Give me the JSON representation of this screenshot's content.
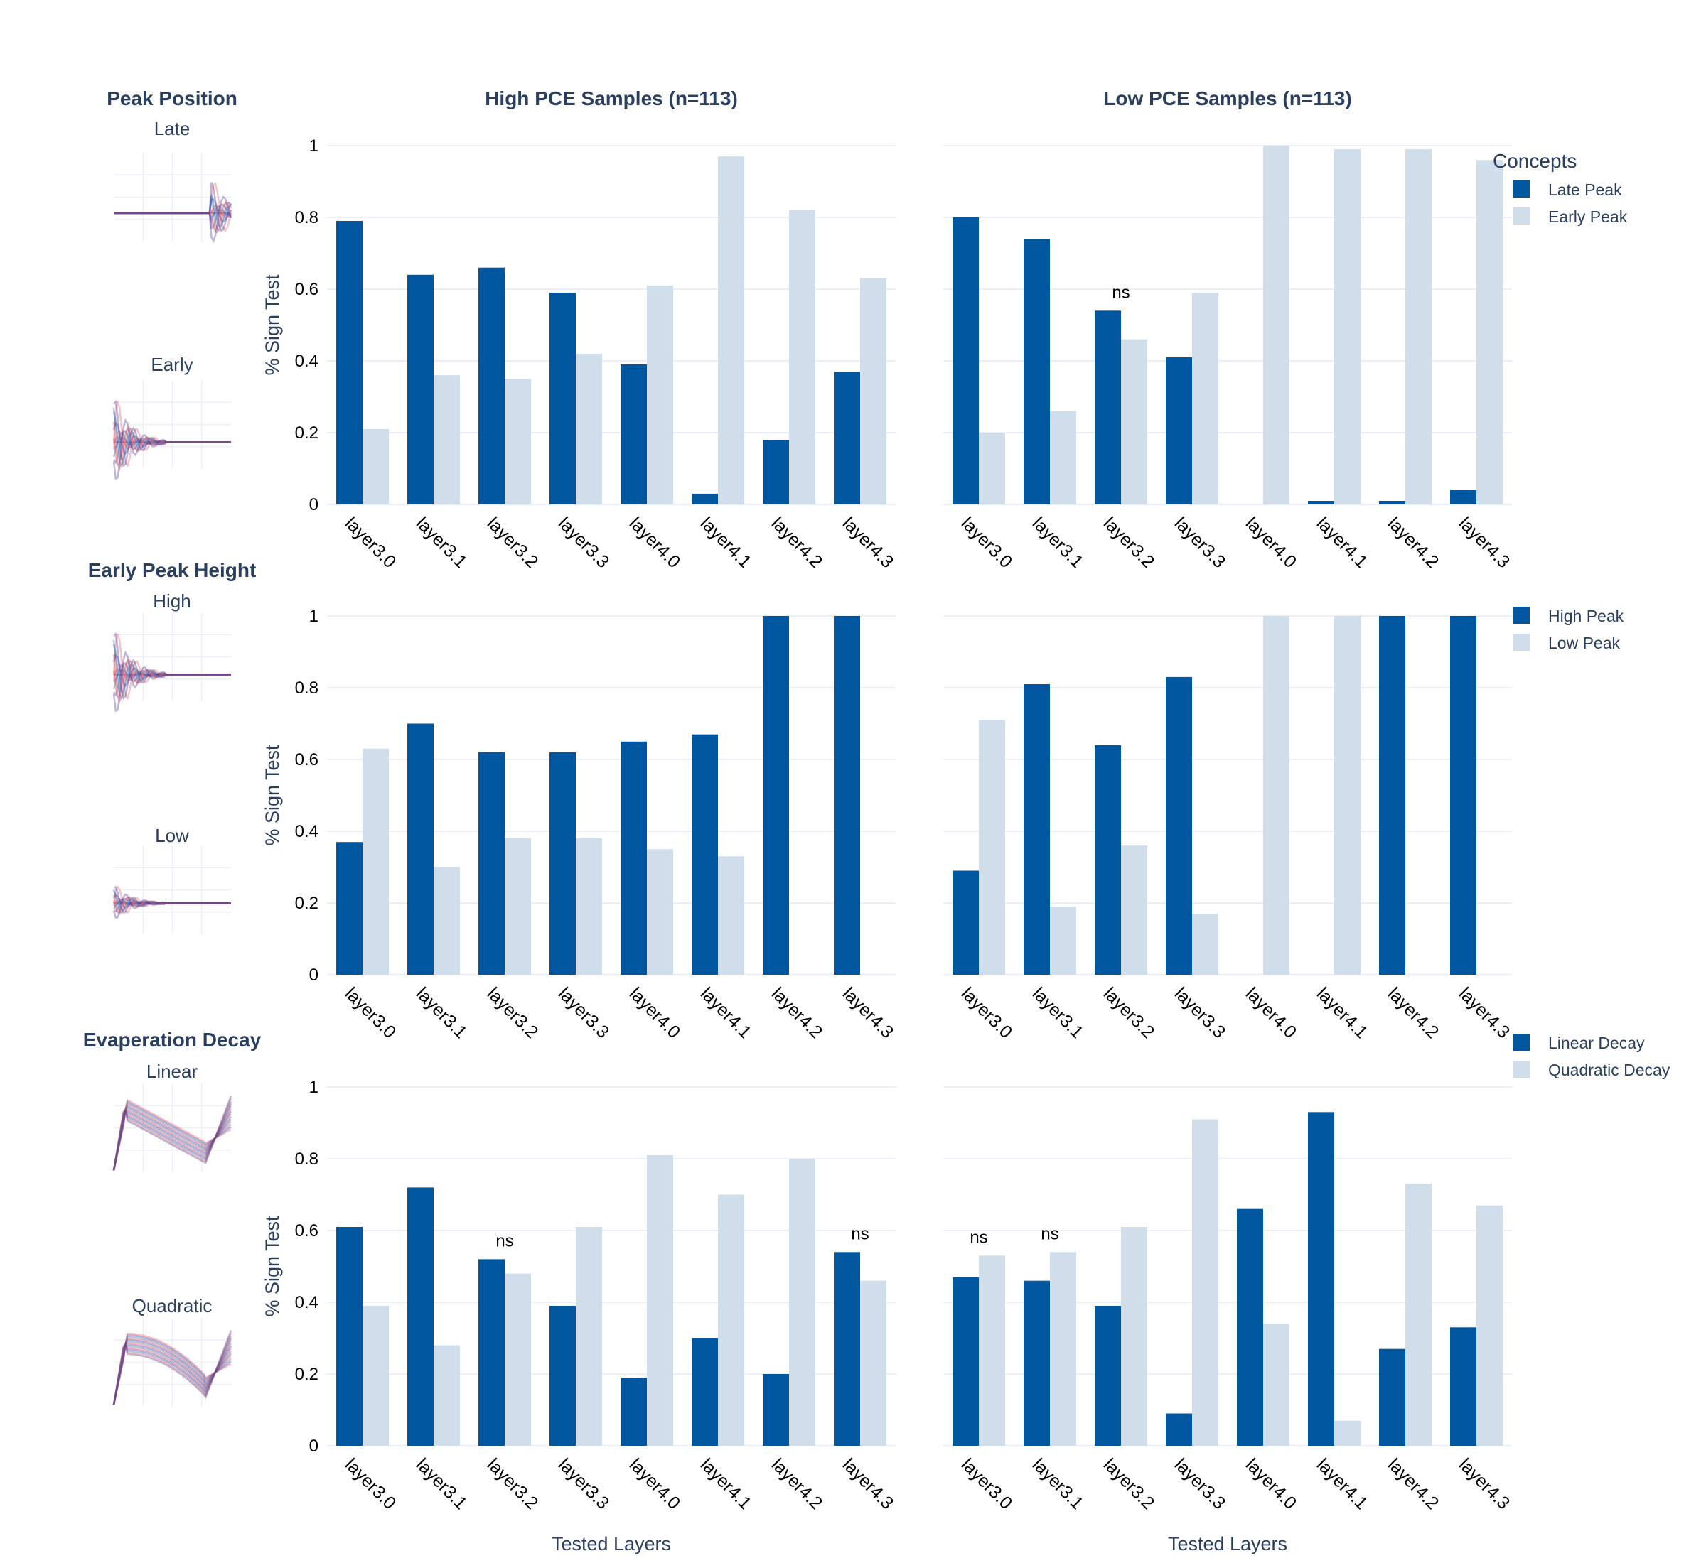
{
  "figure": {
    "column_titles": [
      "High PCE Samples (n=113)",
      "Low PCE Samples (n=113)"
    ],
    "y_axis_title": "% Sign Test",
    "x_axis_title": "Tested Layers",
    "y_ticks": [
      "0",
      "0.2",
      "0.4",
      "0.6",
      "0.8",
      "1"
    ],
    "legend_title": "Concepts"
  },
  "colors": {
    "dark_bar": "#0057A0",
    "light_bar": "#CFDEEA",
    "grid": "#EBF0F8",
    "thumb_red": "#E8525C",
    "thumb_purple": "#4B2E8C",
    "thumb_blue": "#2F6DB5"
  },
  "rows": [
    {
      "title": "Peak Position",
      "thumb_labels": [
        "Late",
        "Early"
      ],
      "thumb_icons": [
        "late-peak-signal-icon",
        "early-peak-signal-icon"
      ]
    },
    {
      "title": "Early Peak Height",
      "thumb_labels": [
        "High",
        "Low"
      ],
      "thumb_icons": [
        "high-peak-signal-icon",
        "low-peak-signal-icon"
      ]
    },
    {
      "title": "Evaperation Decay",
      "thumb_labels": [
        "Linear",
        "Quadratic"
      ],
      "thumb_icons": [
        "linear-decay-signal-icon",
        "quadratic-decay-signal-icon"
      ]
    }
  ],
  "chart_data": [
    {
      "type": "bar",
      "row": 0,
      "col": 0,
      "categories": [
        "layer3.0",
        "layer3.1",
        "layer3.2",
        "layer3.3",
        "layer4.0",
        "layer4.1",
        "layer4.2",
        "layer4.3"
      ],
      "series": [
        {
          "name": "Late Peak",
          "values": [
            0.79,
            0.64,
            0.66,
            0.59,
            0.39,
            0.03,
            0.18,
            0.37
          ]
        },
        {
          "name": "Early Peak",
          "values": [
            0.21,
            0.36,
            0.35,
            0.42,
            0.61,
            0.97,
            0.82,
            0.63
          ]
        }
      ],
      "ylim": [
        0,
        1
      ],
      "annotations": []
    },
    {
      "type": "bar",
      "row": 0,
      "col": 1,
      "categories": [
        "layer3.0",
        "layer3.1",
        "layer3.2",
        "layer3.3",
        "layer4.0",
        "layer4.1",
        "layer4.2",
        "layer4.3"
      ],
      "series": [
        {
          "name": "Late Peak",
          "values": [
            0.8,
            0.74,
            0.54,
            0.41,
            0.0,
            0.01,
            0.01,
            0.04
          ]
        },
        {
          "name": "Early Peak",
          "values": [
            0.2,
            0.26,
            0.46,
            0.59,
            1.0,
            0.99,
            0.99,
            0.96
          ]
        }
      ],
      "ylim": [
        0,
        1
      ],
      "annotations": [
        {
          "category": "layer3.2",
          "text": "ns"
        }
      ]
    },
    {
      "type": "bar",
      "row": 1,
      "col": 0,
      "categories": [
        "layer3.0",
        "layer3.1",
        "layer3.2",
        "layer3.3",
        "layer4.0",
        "layer4.1",
        "layer4.2",
        "layer4.3"
      ],
      "series": [
        {
          "name": "High Peak",
          "values": [
            0.37,
            0.7,
            0.62,
            0.62,
            0.65,
            0.67,
            1.0,
            1.0
          ]
        },
        {
          "name": "Low Peak",
          "values": [
            0.63,
            0.3,
            0.38,
            0.38,
            0.35,
            0.33,
            0.0,
            0.0
          ]
        }
      ],
      "ylim": [
        0,
        1
      ],
      "annotations": []
    },
    {
      "type": "bar",
      "row": 1,
      "col": 1,
      "categories": [
        "layer3.0",
        "layer3.1",
        "layer3.2",
        "layer3.3",
        "layer4.0",
        "layer4.1",
        "layer4.2",
        "layer4.3"
      ],
      "series": [
        {
          "name": "High Peak",
          "values": [
            0.29,
            0.81,
            0.64,
            0.83,
            0.0,
            0.0,
            1.0,
            1.0
          ]
        },
        {
          "name": "Low Peak",
          "values": [
            0.71,
            0.19,
            0.36,
            0.17,
            1.0,
            1.0,
            0.0,
            0.0
          ]
        }
      ],
      "ylim": [
        0,
        1
      ],
      "annotations": []
    },
    {
      "type": "bar",
      "row": 2,
      "col": 0,
      "categories": [
        "layer3.0",
        "layer3.1",
        "layer3.2",
        "layer3.3",
        "layer4.0",
        "layer4.1",
        "layer4.2",
        "layer4.3"
      ],
      "series": [
        {
          "name": "Linear Decay",
          "values": [
            0.61,
            0.72,
            0.52,
            0.39,
            0.19,
            0.3,
            0.2,
            0.54
          ]
        },
        {
          "name": "Quadratic Decay",
          "values": [
            0.39,
            0.28,
            0.48,
            0.61,
            0.81,
            0.7,
            0.8,
            0.46
          ]
        }
      ],
      "ylim": [
        0,
        1
      ],
      "annotations": [
        {
          "category": "layer3.2",
          "text": "ns"
        },
        {
          "category": "layer4.3",
          "text": "ns"
        }
      ]
    },
    {
      "type": "bar",
      "row": 2,
      "col": 1,
      "categories": [
        "layer3.0",
        "layer3.1",
        "layer3.2",
        "layer3.3",
        "layer4.0",
        "layer4.1",
        "layer4.2",
        "layer4.3"
      ],
      "series": [
        {
          "name": "Linear Decay",
          "values": [
            0.47,
            0.46,
            0.39,
            0.09,
            0.66,
            0.93,
            0.27,
            0.33
          ]
        },
        {
          "name": "Quadratic Decay",
          "values": [
            0.53,
            0.54,
            0.61,
            0.91,
            0.34,
            0.07,
            0.73,
            0.67
          ]
        }
      ],
      "ylim": [
        0,
        1
      ],
      "annotations": [
        {
          "category": "layer3.0",
          "text": "ns"
        },
        {
          "category": "layer3.1",
          "text": "ns"
        }
      ]
    }
  ]
}
